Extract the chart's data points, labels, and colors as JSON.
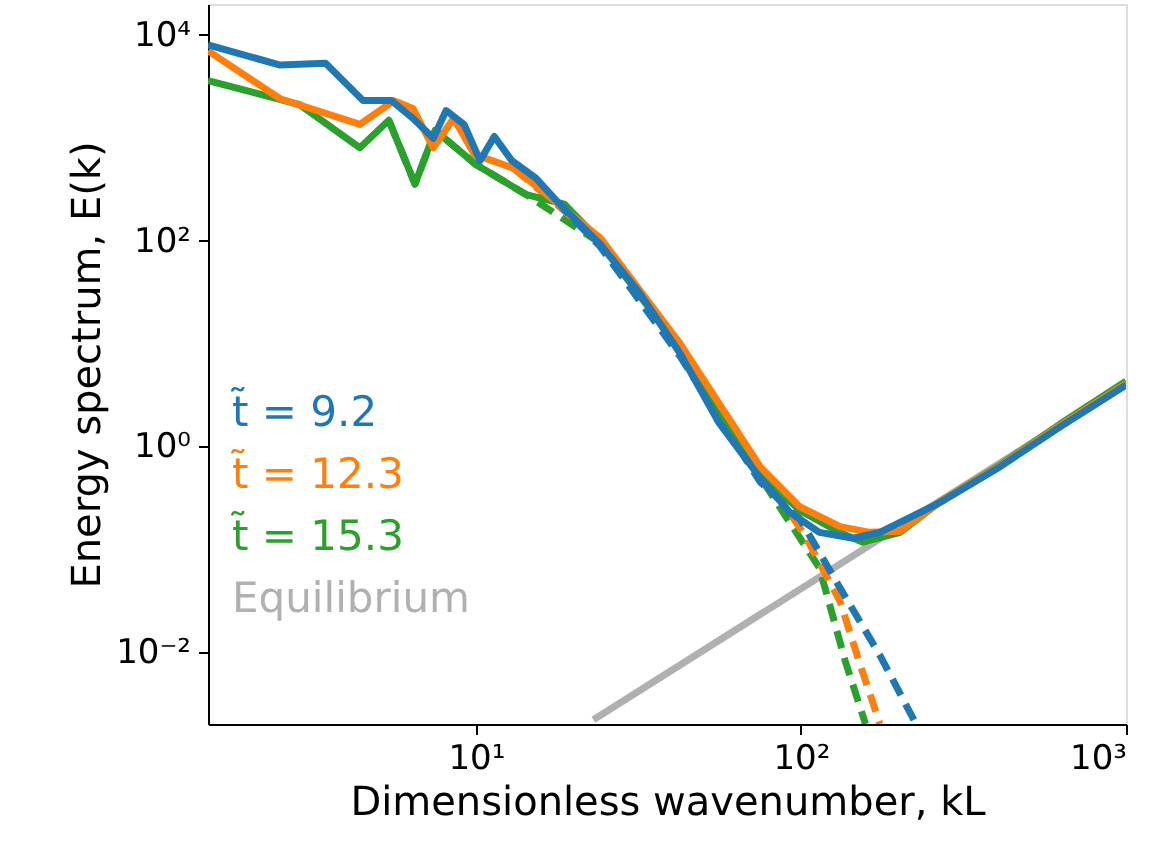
{
  "chart_data": {
    "type": "line",
    "xlabel": "Dimensionless wavenumber, kL",
    "ylabel": "Energy spectrum, E(k)",
    "log": "xy",
    "grid": false,
    "legend": "bottom left",
    "marker": "none",
    "xlim": [
      1.5,
      1000
    ],
    "ylim": [
      0.002,
      20000
    ],
    "xticks": [
      {
        "value": 10,
        "label": "10¹"
      },
      {
        "value": 100,
        "label": "10²"
      },
      {
        "value": 1000,
        "label": "10³"
      }
    ],
    "yticks": [
      {
        "value": 0.01,
        "label": "10⁻²"
      },
      {
        "value": 1,
        "label": "10⁰"
      },
      {
        "value": 100,
        "label": "10²"
      },
      {
        "value": 10000,
        "label": "10⁴"
      }
    ],
    "series": [
      {
        "name": "t̃ = 9.2",
        "color": "#1f77b4",
        "line_style": "solid",
        "x": [
          1.5,
          2.5,
          3.45,
          4.5,
          5.5,
          6.4,
          7.4,
          8.1,
          9.2,
          10.3,
          11.4,
          12.9,
          15.3,
          18.1,
          24.1,
          32,
          42.5,
          56,
          75,
          92.5,
          114,
          145,
          175,
          268,
          410,
          627,
          1000
        ],
        "values": [
          8000,
          5100,
          5300,
          2300,
          2300,
          1550,
          990,
          1840,
          1350,
          600,
          1030,
          600,
          405,
          227,
          93,
          30.5,
          8.0,
          1.69,
          0.49,
          0.228,
          0.146,
          0.128,
          0.146,
          0.285,
          0.635,
          1.55,
          3.95
        ]
      },
      {
        "name": "t̃ = 12.3",
        "color": "#ff7f0e",
        "line_style": "solid",
        "x": [
          1.5,
          2.5,
          4.4,
          5.6,
          6.4,
          7.4,
          8.55,
          9.9,
          13.1,
          24.1,
          42.5,
          75,
          99,
          132,
          163,
          202,
          268,
          410,
          627,
          1000
        ],
        "values": [
          7000,
          2400,
          1350,
          2300,
          1930,
          800,
          1550,
          690,
          505,
          107,
          10,
          0.63,
          0.26,
          0.166,
          0.146,
          0.15,
          0.29,
          0.65,
          1.6,
          4.1
        ]
      },
      {
        "name": "t̃ = 15.3",
        "color": "#2ca02c",
        "line_style": "solid",
        "x": [
          1.5,
          2.87,
          4.4,
          5.4,
          6.5,
          7.5,
          10,
          14.3,
          18.7,
          24.1,
          42.5,
          75,
          99,
          132,
          155,
          202,
          268,
          410,
          627,
          1000
        ],
        "values": [
          3600,
          2100,
          800,
          1480,
          355,
          1180,
          550,
          280,
          227,
          100,
          9.1,
          0.55,
          0.24,
          0.145,
          0.117,
          0.146,
          0.29,
          0.66,
          1.65,
          4.3
        ]
      },
      {
        "color": "#1f77b4",
        "line_style": "dashed",
        "x": [
          15.3,
          24.1,
          42.5,
          75,
          99,
          132,
          175,
          226
        ],
        "values": [
          380,
          88,
          7.5,
          0.45,
          0.2,
          0.042,
          0.0093,
          0.002
        ]
      },
      {
        "color": "#ff7f0e",
        "line_style": "dashed",
        "x": [
          13.1,
          24.1,
          42.5,
          75,
          103,
          132,
          151,
          175
        ],
        "values": [
          500,
          100,
          9.5,
          0.6,
          0.135,
          0.031,
          0.0081,
          0.002
        ]
      },
      {
        "color": "#2ca02c",
        "line_style": "dashed",
        "x": [
          5.4,
          6.5,
          7.5,
          10,
          14.3,
          24.1,
          42.5,
          75,
          114,
          137,
          158
        ],
        "values": [
          1480,
          355,
          1180,
          550,
          280,
          95,
          8.8,
          0.5,
          0.066,
          0.0081,
          0.002
        ]
      },
      {
        "name": "Equilibrium",
        "color": "#b0b0b0",
        "line_style": "solid",
        "x": [
          23,
          1000
        ],
        "values": [
          0.0022,
          4.1
        ]
      }
    ]
  }
}
